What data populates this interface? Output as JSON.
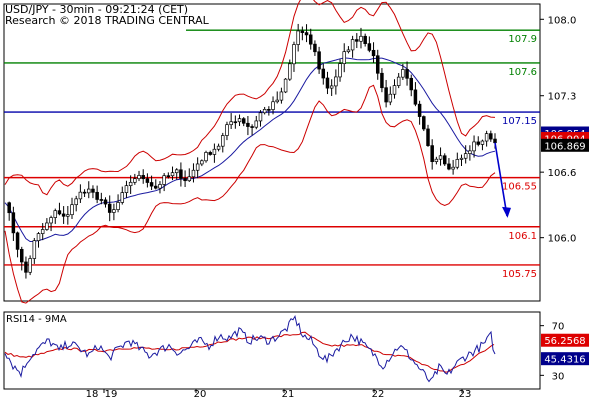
{
  "header": {
    "title": "USD/JPY - 30min - 09:21:24 (CET)",
    "copyright": "Research © 2018 TRADING CENTRAL"
  },
  "colors": {
    "background": "#ffffff",
    "frame": "#000000",
    "candles": "#000000",
    "bollinger": "#cc0000",
    "moving_average": "#1a1aa0",
    "resistance": "#008000",
    "pivot": "#0000aa",
    "support": "#dd0000",
    "forecast_arrow": "#0000cc",
    "rsi_line": "#1a1aa0",
    "rsi_signal": "#cc0000",
    "price_tag_red": "#dd0000",
    "price_tag_dark": "#000000",
    "price_tag_navy": "#00008b"
  },
  "chart_data": [
    {
      "type": "candlestick",
      "title": "USD/JPY - 30min - 09:21:24 (CET)",
      "x_labels": [
        "18",
        "19",
        "20",
        "21",
        "22",
        "23"
      ],
      "y_ticks": [
        106.0,
        106.6,
        107.3,
        108.0
      ],
      "ylim": [
        105.42,
        108.14
      ],
      "grid": false,
      "overlays": [
        "Bollinger Bands",
        "Moving Average"
      ],
      "price_path": [
        {
          "x": 0,
          "price": 106.35
        },
        {
          "x": 10,
          "price": 106.0
        },
        {
          "x": 20,
          "price": 105.65
        },
        {
          "x": 30,
          "price": 105.98
        },
        {
          "x": 40,
          "price": 106.1
        },
        {
          "x": 52,
          "price": 106.25
        },
        {
          "x": 62,
          "price": 106.18
        },
        {
          "x": 72,
          "price": 106.4
        },
        {
          "x": 84,
          "price": 106.42
        },
        {
          "x": 96,
          "price": 106.35
        },
        {
          "x": 106,
          "price": 106.2
        },
        {
          "x": 118,
          "price": 106.4
        },
        {
          "x": 128,
          "price": 106.55
        },
        {
          "x": 140,
          "price": 106.55
        },
        {
          "x": 150,
          "price": 106.45
        },
        {
          "x": 160,
          "price": 106.55
        },
        {
          "x": 172,
          "price": 106.6
        },
        {
          "x": 182,
          "price": 106.52
        },
        {
          "x": 194,
          "price": 106.7
        },
        {
          "x": 204,
          "price": 106.78
        },
        {
          "x": 214,
          "price": 106.85
        },
        {
          "x": 224,
          "price": 107.05
        },
        {
          "x": 234,
          "price": 107.1
        },
        {
          "x": 246,
          "price": 107.0
        },
        {
          "x": 256,
          "price": 107.15
        },
        {
          "x": 266,
          "price": 107.2
        },
        {
          "x": 276,
          "price": 107.3
        },
        {
          "x": 284,
          "price": 107.55
        },
        {
          "x": 292,
          "price": 107.9
        },
        {
          "x": 300,
          "price": 107.85
        },
        {
          "x": 308,
          "price": 107.75
        },
        {
          "x": 316,
          "price": 107.5
        },
        {
          "x": 324,
          "price": 107.35
        },
        {
          "x": 332,
          "price": 107.5
        },
        {
          "x": 340,
          "price": 107.7
        },
        {
          "x": 348,
          "price": 107.8
        },
        {
          "x": 356,
          "price": 107.85
        },
        {
          "x": 364,
          "price": 107.75
        },
        {
          "x": 372,
          "price": 107.55
        },
        {
          "x": 380,
          "price": 107.25
        },
        {
          "x": 388,
          "price": 107.35
        },
        {
          "x": 396,
          "price": 107.55
        },
        {
          "x": 404,
          "price": 107.4
        },
        {
          "x": 412,
          "price": 107.15
        },
        {
          "x": 420,
          "price": 106.95
        },
        {
          "x": 428,
          "price": 106.7
        },
        {
          "x": 436,
          "price": 106.78
        },
        {
          "x": 444,
          "price": 106.62
        },
        {
          "x": 452,
          "price": 106.7
        },
        {
          "x": 460,
          "price": 106.75
        },
        {
          "x": 468,
          "price": 106.85
        },
        {
          "x": 476,
          "price": 106.88
        },
        {
          "x": 484,
          "price": 106.95
        },
        {
          "x": 490,
          "price": 106.87
        }
      ],
      "forecast": {
        "from": 106.87,
        "to": 106.2
      },
      "levels": [
        {
          "label": "107.9",
          "value": 107.9,
          "kind": "resistance"
        },
        {
          "label": "107.6",
          "value": 107.6,
          "kind": "resistance"
        },
        {
          "label": "107.15",
          "value": 107.15,
          "kind": "pivot"
        },
        {
          "label": "106.55",
          "value": 106.55,
          "kind": "support"
        },
        {
          "label": "106.1",
          "value": 106.1,
          "kind": "support"
        },
        {
          "label": "105.75",
          "value": 105.75,
          "kind": "support"
        }
      ],
      "price_tags": [
        {
          "label": "106.954",
          "value": 106.954,
          "style": "navy"
        },
        {
          "label": "106.904",
          "value": 106.904,
          "style": "red"
        },
        {
          "label": "106.869",
          "value": 106.869,
          "style": "dark"
        }
      ]
    },
    {
      "type": "line",
      "title": "RSI14 - 9MA",
      "x_labels": [
        "18",
        "19",
        "20",
        "21",
        "22",
        "23"
      ],
      "y_ticks": [
        30,
        70
      ],
      "ylim": [
        19,
        81
      ],
      "series": [
        {
          "role": "rsi",
          "values": [
            {
              "x": 0,
              "v": 50
            },
            {
              "x": 8,
              "v": 38
            },
            {
              "x": 16,
              "v": 32
            },
            {
              "x": 24,
              "v": 44
            },
            {
              "x": 34,
              "v": 52
            },
            {
              "x": 44,
              "v": 58
            },
            {
              "x": 54,
              "v": 50
            },
            {
              "x": 64,
              "v": 56
            },
            {
              "x": 74,
              "v": 52
            },
            {
              "x": 84,
              "v": 46
            },
            {
              "x": 94,
              "v": 54
            },
            {
              "x": 104,
              "v": 44
            },
            {
              "x": 114,
              "v": 52
            },
            {
              "x": 124,
              "v": 58
            },
            {
              "x": 134,
              "v": 52
            },
            {
              "x": 144,
              "v": 46
            },
            {
              "x": 154,
              "v": 50
            },
            {
              "x": 164,
              "v": 54
            },
            {
              "x": 174,
              "v": 48
            },
            {
              "x": 184,
              "v": 52
            },
            {
              "x": 194,
              "v": 58
            },
            {
              "x": 204,
              "v": 54
            },
            {
              "x": 214,
              "v": 62
            },
            {
              "x": 224,
              "v": 60
            },
            {
              "x": 234,
              "v": 66
            },
            {
              "x": 244,
              "v": 58
            },
            {
              "x": 254,
              "v": 60
            },
            {
              "x": 264,
              "v": 58
            },
            {
              "x": 274,
              "v": 62
            },
            {
              "x": 282,
              "v": 68
            },
            {
              "x": 290,
              "v": 76
            },
            {
              "x": 298,
              "v": 62
            },
            {
              "x": 306,
              "v": 58
            },
            {
              "x": 314,
              "v": 48
            },
            {
              "x": 322,
              "v": 42
            },
            {
              "x": 330,
              "v": 50
            },
            {
              "x": 338,
              "v": 56
            },
            {
              "x": 346,
              "v": 62
            },
            {
              "x": 354,
              "v": 58
            },
            {
              "x": 362,
              "v": 52
            },
            {
              "x": 370,
              "v": 46
            },
            {
              "x": 378,
              "v": 38
            },
            {
              "x": 386,
              "v": 46
            },
            {
              "x": 394,
              "v": 54
            },
            {
              "x": 402,
              "v": 48
            },
            {
              "x": 410,
              "v": 40
            },
            {
              "x": 418,
              "v": 32
            },
            {
              "x": 426,
              "v": 24
            },
            {
              "x": 434,
              "v": 36
            },
            {
              "x": 442,
              "v": 30
            },
            {
              "x": 450,
              "v": 38
            },
            {
              "x": 458,
              "v": 44
            },
            {
              "x": 466,
              "v": 48
            },
            {
              "x": 474,
              "v": 52
            },
            {
              "x": 480,
              "v": 56
            },
            {
              "x": 486,
              "v": 62
            },
            {
              "x": 490,
              "v": 45.4
            }
          ]
        },
        {
          "role": "signal",
          "values": [
            {
              "x": 0,
              "v": 48
            },
            {
              "x": 20,
              "v": 44
            },
            {
              "x": 40,
              "v": 48
            },
            {
              "x": 60,
              "v": 52
            },
            {
              "x": 80,
              "v": 50
            },
            {
              "x": 100,
              "v": 50
            },
            {
              "x": 120,
              "v": 52
            },
            {
              "x": 140,
              "v": 52
            },
            {
              "x": 160,
              "v": 50
            },
            {
              "x": 180,
              "v": 52
            },
            {
              "x": 200,
              "v": 54
            },
            {
              "x": 220,
              "v": 58
            },
            {
              "x": 240,
              "v": 60
            },
            {
              "x": 260,
              "v": 60
            },
            {
              "x": 280,
              "v": 62
            },
            {
              "x": 300,
              "v": 64
            },
            {
              "x": 320,
              "v": 54
            },
            {
              "x": 340,
              "v": 54
            },
            {
              "x": 360,
              "v": 54
            },
            {
              "x": 380,
              "v": 46
            },
            {
              "x": 400,
              "v": 46
            },
            {
              "x": 420,
              "v": 38
            },
            {
              "x": 440,
              "v": 32
            },
            {
              "x": 460,
              "v": 40
            },
            {
              "x": 480,
              "v": 50
            },
            {
              "x": 490,
              "v": 56.3
            }
          ]
        }
      ],
      "price_tags": [
        {
          "label": "56.2568",
          "value": 56.2568,
          "style": "red"
        },
        {
          "label": "45.4316",
          "value": 45.4316,
          "style": "navy"
        }
      ]
    }
  ]
}
